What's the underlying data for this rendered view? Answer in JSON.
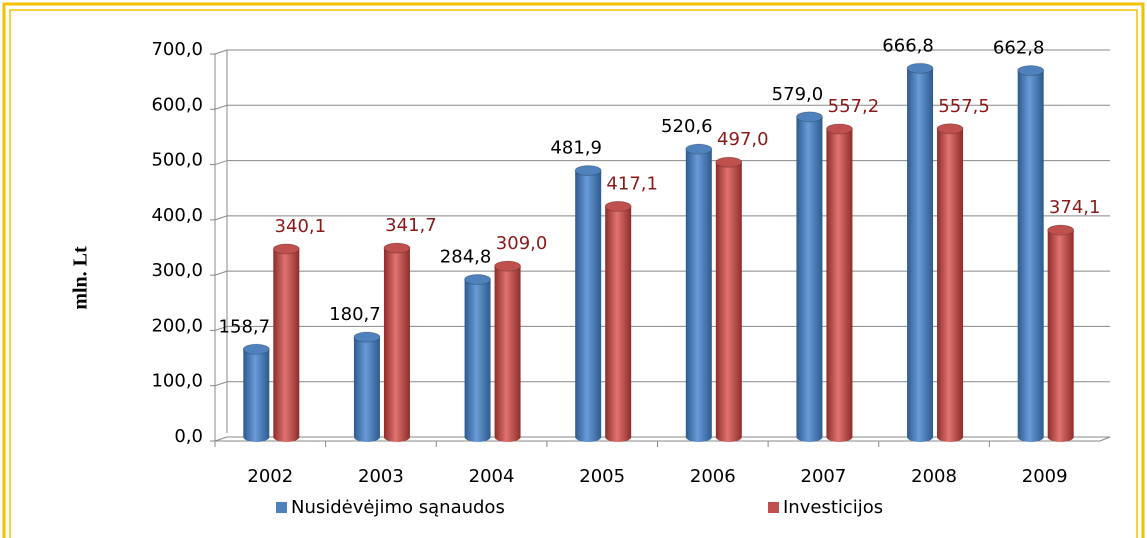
{
  "chart_data": {
    "type": "bar",
    "ylabel": "mln. Lt",
    "categories": [
      "2002",
      "2003",
      "2004",
      "2005",
      "2006",
      "2007",
      "2008",
      "2009"
    ],
    "series": [
      {
        "name": "Nusidėvėjimo sąnaudos",
        "color": "#4f81bd",
        "values": [
          158.7,
          180.7,
          284.8,
          481.9,
          520.6,
          579.0,
          666.8,
          662.8
        ],
        "value_labels": [
          "158,7",
          "180,7",
          "284,8",
          "481,9",
          "520,6",
          "579,0",
          "666,8",
          "662,8"
        ]
      },
      {
        "name": "Investicijos",
        "color": "#c0504d",
        "values": [
          340.1,
          341.7,
          309.0,
          417.1,
          497.0,
          557.2,
          557.5,
          374.1
        ],
        "value_labels": [
          "340,1",
          "341,7",
          "309,0",
          "417,1",
          "497,0",
          "557,2",
          "557,5",
          "374,1"
        ]
      }
    ],
    "ylim": [
      0,
      700
    ],
    "yticks": [
      {
        "value": 0,
        "label": "0,0"
      },
      {
        "value": 100,
        "label": "100,0"
      },
      {
        "value": 200,
        "label": "200,0"
      },
      {
        "value": 300,
        "label": "300,0"
      },
      {
        "value": 400,
        "label": "400,0"
      },
      {
        "value": 500,
        "label": "500,0"
      },
      {
        "value": 600,
        "label": "600,0"
      },
      {
        "value": 700,
        "label": "700,0"
      }
    ],
    "grid": true
  }
}
